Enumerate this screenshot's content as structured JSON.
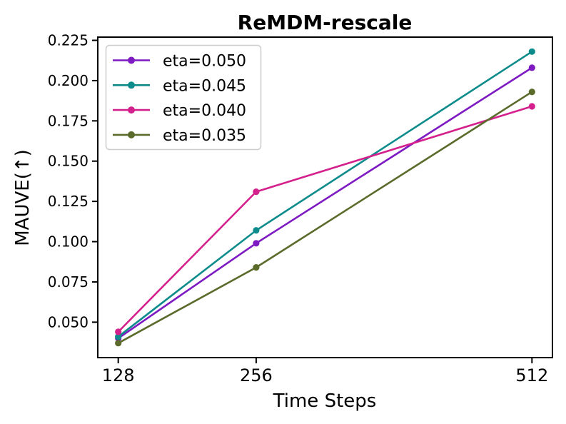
{
  "chart_data": {
    "type": "line",
    "title": "ReMDM-rescale",
    "xlabel": "Time Steps",
    "ylabel": "MAUVE(↑)",
    "x": [
      128,
      256,
      512
    ],
    "x_tick_labels": [
      "128",
      "256",
      "512"
    ],
    "y_ticks": [
      0.05,
      0.075,
      0.1,
      0.125,
      0.15,
      0.175,
      0.2,
      0.225
    ],
    "y_tick_labels": [
      "0.050",
      "0.075",
      "0.100",
      "0.125",
      "0.150",
      "0.175",
      "0.200",
      "0.225"
    ],
    "xlim": [
      109,
      531
    ],
    "ylim": [
      0.028,
      0.227
    ],
    "grid": false,
    "legend_position": "upper left",
    "series": [
      {
        "name": "eta=0.050",
        "color": "#7D1AC2",
        "values": [
          0.04,
          0.099,
          0.208
        ]
      },
      {
        "name": "eta=0.045",
        "color": "#0E8B8B",
        "values": [
          0.041,
          0.107,
          0.218
        ]
      },
      {
        "name": "eta=0.040",
        "color": "#D4208C",
        "values": [
          0.044,
          0.131,
          0.184
        ]
      },
      {
        "name": "eta=0.035",
        "color": "#5B6B2B",
        "values": [
          0.037,
          0.084,
          0.193
        ]
      }
    ],
    "colors": {
      "spine": "#000000",
      "plot_background": "#ffffff",
      "legend_border": "#cccccc",
      "legend_background": "#ffffff"
    }
  }
}
